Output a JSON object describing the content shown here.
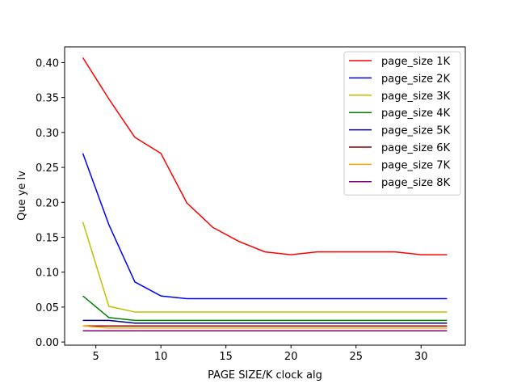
{
  "chart_data": {
    "type": "line",
    "title": "",
    "xlabel": "PAGE SIZE/K clock alg",
    "ylabel": "Que ye lv",
    "xlim": [
      2.6,
      33.4
    ],
    "ylim": [
      -0.0045,
      0.4225
    ],
    "x_ticks": [
      5,
      10,
      15,
      20,
      25,
      30
    ],
    "y_ticks": [
      0.0,
      0.05,
      0.1,
      0.15,
      0.2,
      0.25,
      0.3,
      0.35,
      0.4
    ],
    "x_tick_labels": [
      "5",
      "10",
      "15",
      "20",
      "25",
      "30"
    ],
    "y_tick_labels": [
      "0.00",
      "0.05",
      "0.10",
      "0.15",
      "0.20",
      "0.25",
      "0.30",
      "0.35",
      "0.40"
    ],
    "grid": false,
    "legend_position": "top-right",
    "x": [
      4,
      6,
      8,
      10,
      12,
      14,
      16,
      18,
      20,
      22,
      24,
      26,
      28,
      30,
      32
    ],
    "series": [
      {
        "name": "page_size 1K",
        "color": "#ff0000",
        "values": [
          0.407,
          0.348,
          0.293,
          0.27,
          0.199,
          0.164,
          0.144,
          0.129,
          0.125,
          0.129,
          0.129,
          0.129,
          0.129,
          0.125,
          0.125
        ]
      },
      {
        "name": "page_size 2K",
        "color": "#0000ff",
        "values": [
          0.27,
          0.168,
          0.086,
          0.066,
          0.062,
          0.062,
          0.062,
          0.062,
          0.062,
          0.062,
          0.062,
          0.062,
          0.062,
          0.062,
          0.062
        ]
      },
      {
        "name": "page_size 3K",
        "color": "#bfbf00",
        "values": [
          0.172,
          0.051,
          0.043,
          0.043,
          0.043,
          0.043,
          0.043,
          0.043,
          0.043,
          0.043,
          0.043,
          0.043,
          0.043,
          0.043,
          0.043
        ]
      },
      {
        "name": "page_size 4K",
        "color": "#008000",
        "values": [
          0.066,
          0.035,
          0.031,
          0.031,
          0.031,
          0.031,
          0.031,
          0.031,
          0.031,
          0.031,
          0.031,
          0.031,
          0.031,
          0.031,
          0.031
        ]
      },
      {
        "name": "page_size 5K",
        "color": "#00008b",
        "values": [
          0.031,
          0.031,
          0.027,
          0.027,
          0.027,
          0.027,
          0.027,
          0.027,
          0.027,
          0.027,
          0.027,
          0.027,
          0.027,
          0.027,
          0.027
        ]
      },
      {
        "name": "page_size 6K",
        "color": "#8b0000",
        "values": [
          0.023,
          0.023,
          0.023,
          0.023,
          0.023,
          0.023,
          0.023,
          0.023,
          0.023,
          0.023,
          0.023,
          0.023,
          0.023,
          0.023,
          0.023
        ]
      },
      {
        "name": "page_size 7K",
        "color": "#ffa500",
        "values": [
          0.023,
          0.02,
          0.02,
          0.02,
          0.02,
          0.02,
          0.02,
          0.02,
          0.02,
          0.02,
          0.02,
          0.02,
          0.02,
          0.02,
          0.02
        ]
      },
      {
        "name": "page_size 8K",
        "color": "#800080",
        "values": [
          0.016,
          0.016,
          0.016,
          0.016,
          0.016,
          0.016,
          0.016,
          0.016,
          0.016,
          0.016,
          0.016,
          0.016,
          0.016,
          0.016,
          0.016
        ]
      }
    ]
  }
}
